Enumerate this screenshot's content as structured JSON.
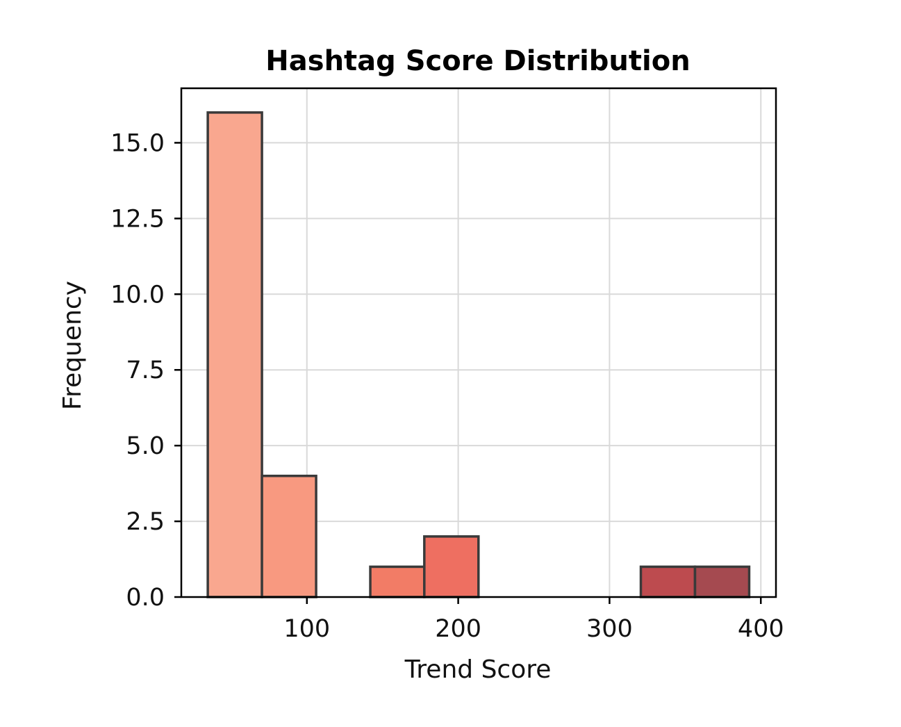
{
  "chart_data": {
    "type": "bar",
    "title": "Hashtag Score Distribution",
    "xlabel": "Trend Score",
    "ylabel": "Frequency",
    "xlim": [
      17,
      410
    ],
    "ylim": [
      0,
      16.8
    ],
    "xticks": [
      100,
      200,
      300,
      400
    ],
    "xtick_labels": [
      "100",
      "200",
      "300",
      "400"
    ],
    "yticks": [
      0,
      2.5,
      5,
      7.5,
      10,
      12.5,
      15
    ],
    "ytick_labels": [
      "0.0",
      "2.5",
      "5.0",
      "7.5",
      "10.0",
      "12.5",
      "15.0"
    ],
    "grid": true,
    "bins": [
      {
        "x0": 34.5,
        "x1": 70.3,
        "count": 16,
        "color": "#f9a78f"
      },
      {
        "x0": 70.3,
        "x1": 106.1,
        "count": 4,
        "color": "#f89980"
      },
      {
        "x0": 106.1,
        "x1": 141.9,
        "count": 0,
        "color": "#f58a72"
      },
      {
        "x0": 141.9,
        "x1": 177.6,
        "count": 1,
        "color": "#f27c66"
      },
      {
        "x0": 177.6,
        "x1": 213.4,
        "count": 2,
        "color": "#ee6f61"
      },
      {
        "x0": 213.4,
        "x1": 249.2,
        "count": 0,
        "color": "#e4625c"
      },
      {
        "x0": 249.2,
        "x1": 285.0,
        "count": 0,
        "color": "#d85657"
      },
      {
        "x0": 285.0,
        "x1": 320.7,
        "count": 0,
        "color": "#cb4e52"
      },
      {
        "x0": 320.7,
        "x1": 356.5,
        "count": 1,
        "color": "#bd4b4f"
      },
      {
        "x0": 356.5,
        "x1": 392.3,
        "count": 1,
        "color": "#a54a50"
      }
    ]
  }
}
